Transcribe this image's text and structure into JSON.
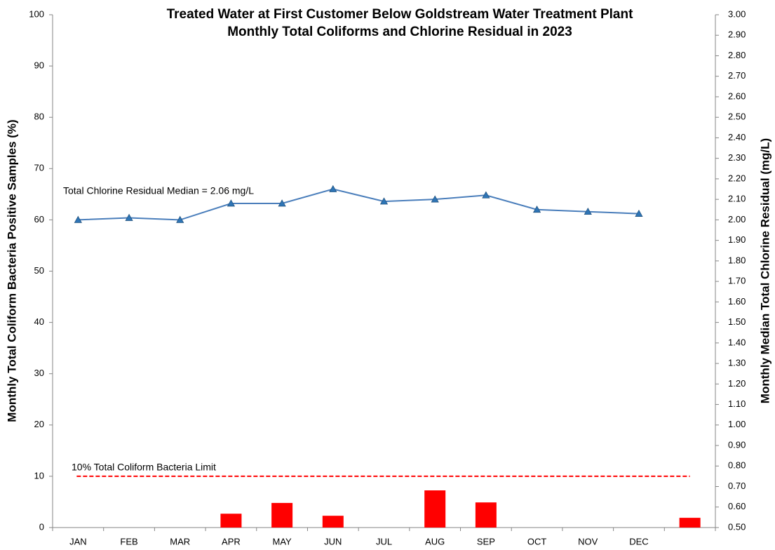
{
  "chart_data": {
    "type": "combo",
    "title": [
      "Treated Water at First Customer Below Goldstream Water Treatment Plant",
      "Monthly Total Coliforms and Chlorine Residual in 2023"
    ],
    "y_label": "Monthly Total Coliform Bacteria Positive Samples (%)",
    "y2_label": "Monthly Median Total Chlorine Residual (mg/L)",
    "categories": [
      "JAN",
      "FEB",
      "MAR",
      "APR",
      "MAY",
      "JUN",
      "JUL",
      "AUG",
      "SEP",
      "OCT",
      "NOV",
      "DEC",
      null
    ],
    "series": [
      {
        "type": "bar",
        "color": "#ff0000",
        "values": [
          0,
          0,
          0,
          2.7,
          4.8,
          2.3,
          0,
          7.25,
          4.9,
          0,
          0,
          0,
          1.9
        ]
      },
      {
        "type": "line",
        "axis": "y2",
        "color": "#4a7ebb",
        "marker_color": "#2e75b6",
        "values": [
          2.0,
          2.01,
          2.0,
          2.08,
          2.08,
          2.15,
          2.09,
          2.1,
          2.12,
          2.05,
          2.04,
          2.03,
          null
        ]
      }
    ],
    "ylim": [
      0,
      100
    ],
    "yticks": [
      0,
      10,
      20,
      30,
      40,
      50,
      60,
      70,
      80,
      90,
      100
    ],
    "y2lim": [
      0.5,
      3.0
    ],
    "y2ticks": [
      {
        "value": 0.5,
        "label": "0.50"
      },
      {
        "value": 0.6,
        "label": "0.60"
      },
      {
        "value": 0.7,
        "label": "0.70"
      },
      {
        "value": 0.8,
        "label": "0.80"
      },
      {
        "value": 0.9,
        "label": "0.90"
      },
      {
        "value": 1.0,
        "label": "1.00"
      },
      {
        "value": 1.1,
        "label": "1.10"
      },
      {
        "value": 1.2,
        "label": "1.20"
      },
      {
        "value": 1.3,
        "label": "1.30"
      },
      {
        "value": 1.4,
        "label": "1.40"
      },
      {
        "value": 1.5,
        "label": "1.50"
      },
      {
        "value": 1.6,
        "label": "1.60"
      },
      {
        "value": 1.7,
        "label": "1.70"
      },
      {
        "value": 1.8,
        "label": "1.80"
      },
      {
        "value": 1.9,
        "label": "1.90"
      },
      {
        "value": 2.0,
        "label": "2.00"
      },
      {
        "value": 2.1,
        "label": "2.10"
      },
      {
        "value": 2.2,
        "label": "2.20"
      },
      {
        "value": 2.3,
        "label": "2.30"
      },
      {
        "value": 2.4,
        "label": "2.40"
      },
      {
        "value": 2.5,
        "label": "2.50"
      },
      {
        "value": 2.6,
        "label": "2.60"
      },
      {
        "value": 2.7,
        "label": "2.70"
      },
      {
        "value": 2.8,
        "label": "2.80"
      },
      {
        "value": 2.9,
        "label": "2.90"
      },
      {
        "value": 3.0,
        "label": "3.00"
      }
    ],
    "reference_line": {
      "value": 10,
      "label": "10% Total Coliform Bacteria Limit",
      "color": "#ff0000",
      "dashed": true
    },
    "annotation": "Total Chlorine Residual Median = 2.06 mg/L",
    "grid": false
  }
}
